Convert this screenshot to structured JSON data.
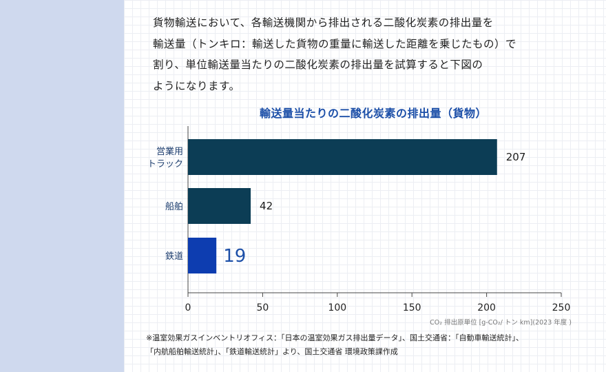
{
  "intro": {
    "lines": [
      "貨物輸送において、各輸送機関から排出される二酸化炭素の排出量を",
      "輸送量（トンキロ：輸送した貨物の重量に輸送した距離を乗じたもの）で",
      "割り、単位輸送量当たりの二酸化炭素の排出量を試算すると下図の",
      "ようになります。"
    ]
  },
  "chart_data": {
    "type": "bar",
    "orientation": "horizontal",
    "title": "輸送量当たりの二酸化炭素の排出量（貨物）",
    "categories": [
      "営業用\nトラック",
      "船舶",
      "鉄道"
    ],
    "values": [
      207,
      42,
      19
    ],
    "bar_colors": [
      "#0c3d55",
      "#0c3d55",
      "#0d3db0"
    ],
    "highlight_label_color": "#1c4fa8",
    "xlim": [
      0,
      250
    ],
    "xticks": [
      0,
      50,
      100,
      150,
      200,
      250
    ],
    "grid": true,
    "unit_note": "CO₂ 排出原単位 [g-CO₂/ トン km](2023 年度 )"
  },
  "source": {
    "lines": [
      "※温室効果ガスインベントリオフィス：「日本の温室効果ガス排出量データ」、国土交通省：「自動車輸送統計」、",
      "「内航船舶輸送統計」、「鉄道輸送統計」より、国土交通省 環境政策課作成"
    ]
  }
}
